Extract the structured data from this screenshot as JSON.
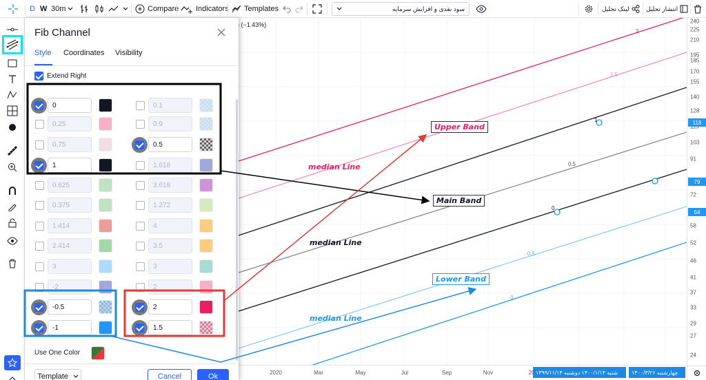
{
  "topbar": {
    "symbol_short": "D",
    "symbol_w": "W",
    "interval": "30m",
    "compare_label": "Compare",
    "indicators_label": "Indicators",
    "templates_label": "Templates",
    "layout_name": "سود نقدی و افزایش سرمایه",
    "analysis_link": "لینک تحلیل",
    "publish_analysis": "انتشار تحلیل"
  },
  "legend_text": ") (−1.43%)",
  "dialog": {
    "title": "Fib Channel",
    "tabs": [
      "Style",
      "Coordinates",
      "Visibility"
    ],
    "extend_right_label": "Extend Right",
    "use_one_color_label": "Use One Color",
    "template_label": "Template",
    "cancel_label": "Cancel",
    "ok_label": "Ok",
    "levels_left": [
      {
        "value": "0",
        "checked": true,
        "color": "#131722",
        "transparent": false
      },
      {
        "value": "0.25",
        "checked": false,
        "color": "#f48fb1",
        "transparent": false
      },
      {
        "value": "0.75",
        "checked": false,
        "color": "#f8bbd0",
        "transparent": true
      },
      {
        "value": "1",
        "checked": true,
        "color": "#131722",
        "transparent": false
      },
      {
        "value": "0.625",
        "checked": false,
        "color": "#a5d6a7",
        "transparent": false
      },
      {
        "value": "0.375",
        "checked": false,
        "color": "#a5d6a7",
        "transparent": false
      },
      {
        "value": "1.414",
        "checked": false,
        "color": "#e57373",
        "transparent": false
      },
      {
        "value": "2.414",
        "checked": false,
        "color": "#81c784",
        "transparent": false
      },
      {
        "value": "3",
        "checked": false,
        "color": "#90caf9",
        "transparent": false
      },
      {
        "value": "-2",
        "checked": false,
        "color": "#7986cb",
        "transparent": false
      },
      {
        "value": "-0.5",
        "checked": true,
        "color": "#64b5f6",
        "transparent": true
      },
      {
        "value": "-1",
        "checked": true,
        "color": "#2196f3",
        "transparent": false
      }
    ],
    "levels_right": [
      {
        "value": "0.1",
        "checked": false,
        "color": "#90caf9",
        "transparent": true
      },
      {
        "value": "0.9",
        "checked": false,
        "color": "#90caf9",
        "transparent": true
      },
      {
        "value": "0.5",
        "checked": true,
        "color": "#555555",
        "transparent": true
      },
      {
        "value": "1.618",
        "checked": false,
        "color": "#7986cb",
        "transparent": false
      },
      {
        "value": "3.618",
        "checked": false,
        "color": "#ba68c8",
        "transparent": false
      },
      {
        "value": "1.272",
        "checked": false,
        "color": "#c5e1a5",
        "transparent": false
      },
      {
        "value": "4",
        "checked": false,
        "color": "#ffb74d",
        "transparent": false
      },
      {
        "value": "3.5",
        "checked": false,
        "color": "#ffb74d",
        "transparent": false
      },
      {
        "value": "3",
        "checked": false,
        "color": "#80cbc4",
        "transparent": false
      },
      {
        "value": "2",
        "checked": false,
        "color": "#f48fb1",
        "transparent": false
      },
      {
        "value": "2",
        "checked": true,
        "color": "#e91e63",
        "transparent": false
      },
      {
        "value": "1.5",
        "checked": true,
        "color": "#f06292",
        "transparent": true
      }
    ]
  },
  "chart": {
    "upper_band": "Upper Band",
    "main_band": "Main Band",
    "lower_band": "Lower Band",
    "median_line": "median Line",
    "line_levels": [
      "2",
      "1.5",
      "1",
      "0.5",
      "0",
      "-0.5",
      "-1"
    ],
    "price_ticks": [
      "240",
      "225",
      "210",
      "195",
      "185",
      "170",
      "155",
      "140",
      "128",
      "115",
      "103",
      "91",
      "79",
      "72",
      "64",
      "58",
      "52",
      "46",
      "41",
      "37",
      "33",
      "29",
      "27",
      "24"
    ],
    "price_badges": [
      {
        "value": "118",
        "color": "#2196f3"
      },
      {
        "value": "79",
        "color": "#2196f3"
      },
      {
        "value": "64",
        "color": "#2196f3"
      }
    ],
    "time_ticks": [
      "2020",
      "Mar",
      "May",
      "Jul",
      "Sep",
      "Nov",
      "20"
    ],
    "time_chips": [
      "۱۳۹۹/۱۱/۱۴ شنبه ۱۴۰۰/۱/۱۴ دوشنبه",
      "۱۴۰۰/۳/۲۶ چهارشنبه"
    ]
  },
  "colors": {
    "accent": "#2962ff",
    "highlight_cyan": "#00e5ff",
    "black_box": "#000000",
    "blue_box": "#1e88e5",
    "red_box": "#e53935"
  }
}
